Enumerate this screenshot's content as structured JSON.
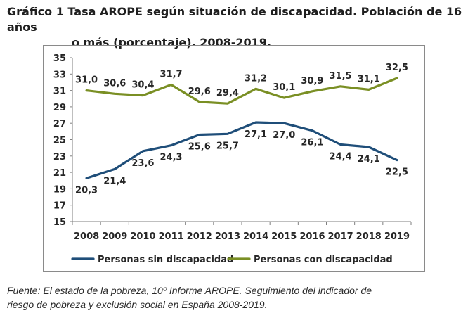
{
  "title": {
    "line1": "Gráfico 1 Tasa AROPE según situación de discapacidad. Población de 16 años",
    "line2": "o más (porcentaje). 2008-2019."
  },
  "source": {
    "line1": "Fuente: El estado de la pobreza, 10º Informe AROPE. Seguimiento del indicador de",
    "line2": "riesgo de pobreza y exclusión social en España 2008-2019."
  },
  "chart_data": {
    "type": "line",
    "title": "Gráfico 1 Tasa AROPE según situación de discapacidad. Población de 16 años o más (porcentaje). 2008-2019.",
    "xlabel": "",
    "ylabel": "",
    "categories": [
      "2008",
      "2009",
      "2010",
      "2011",
      "2012",
      "2013",
      "2014",
      "2015",
      "2016",
      "2017",
      "2018",
      "2019"
    ],
    "ylim": [
      15,
      35
    ],
    "yticks": [
      "15",
      "17",
      "19",
      "21",
      "23",
      "25",
      "27",
      "29",
      "31",
      "33",
      "35"
    ],
    "grid": false,
    "legend_position": "bottom",
    "series": [
      {
        "name": "Personas sin discapacidad",
        "color": "#1f4e79",
        "values": [
          20.3,
          21.4,
          23.6,
          24.3,
          25.6,
          25.7,
          27.1,
          27.0,
          26.1,
          24.4,
          24.1,
          22.5
        ],
        "labels": [
          "20,3",
          "21,4",
          "23,6",
          "24,3",
          "25,6",
          "25,7",
          "27,1",
          "27,0",
          "26,1",
          "24,4",
          "24,1",
          "22,5"
        ],
        "label_side": "below"
      },
      {
        "name": "Personas con discapacidad",
        "color": "#7a8f24",
        "values": [
          31.0,
          30.6,
          30.4,
          31.7,
          29.6,
          29.4,
          31.2,
          30.1,
          30.9,
          31.5,
          31.1,
          32.5
        ],
        "labels": [
          "31,0",
          "30,6",
          "30,4",
          "31,7",
          "29,6",
          "29,4",
          "31,2",
          "30,1",
          "30,9",
          "31,5",
          "31,1",
          "32,5"
        ],
        "label_side": "above"
      }
    ]
  }
}
